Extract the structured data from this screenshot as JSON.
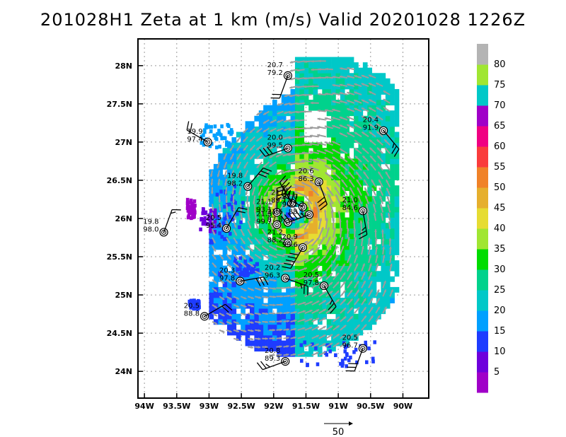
{
  "chart_data": {
    "type": "heatmap",
    "title": "201028H1 Zeta at 1 km (m/s) Valid 20201028 1226Z",
    "x_ticks": [
      "94W",
      "93.5W",
      "93W",
      "92.5W",
      "92W",
      "91.5W",
      "91W",
      "90.5W",
      "90W"
    ],
    "x_tick_values": [
      -94,
      -93.5,
      -93,
      -92.5,
      -92,
      -91.5,
      -91,
      -90.5,
      -90
    ],
    "y_ticks": [
      "24N",
      "24.5N",
      "25N",
      "25.5N",
      "26N",
      "26.5N",
      "27N",
      "27.5N",
      "28N"
    ],
    "y_tick_values": [
      24,
      24.5,
      25,
      25.5,
      26,
      26.5,
      27,
      27.5,
      28
    ],
    "xlim": [
      -94.1,
      -89.6
    ],
    "ylim": [
      23.65,
      28.35
    ],
    "grid": true,
    "center": {
      "lon": -91.7,
      "lat": 26.05
    },
    "colorbar": {
      "levels": [
        "5",
        "10",
        "15",
        "20",
        "25",
        "30",
        "35",
        "40",
        "45",
        "50",
        "55",
        "60",
        "65",
        "70",
        "75",
        "80"
      ],
      "colors": [
        "#a000c8",
        "#6e00dc",
        "#1e3cff",
        "#00a0ff",
        "#00c8c8",
        "#00d28c",
        "#00dc00",
        "#a0e632",
        "#e6dc32",
        "#e6af2d",
        "#f08228",
        "#fa3c3c",
        "#f00082",
        "#a000c8",
        "#00c8c8",
        "#a0e632",
        "#b4b4b4"
      ]
    },
    "vector_reference": {
      "label": "50",
      "speed": 50
    },
    "dropsondes": [
      {
        "lon": -91.78,
        "lat": 27.87,
        "label_top": "20.7",
        "label_bottom": "79.2",
        "wind_dir": 200,
        "wind_speed": 20
      },
      {
        "lon": -90.3,
        "lat": 27.15,
        "label_top": "20.4",
        "label_bottom": "91.9",
        "wind_dir": 140,
        "wind_speed": 25
      },
      {
        "lon": -93.02,
        "lat": 27.0,
        "label_top": "19.9",
        "label_bottom": "97.4",
        "wind_dir": 300,
        "wind_speed": 20
      },
      {
        "lon": -91.78,
        "lat": 26.92,
        "label_top": "20.0",
        "label_bottom": "99.5",
        "wind_dir": 250,
        "wind_speed": 30
      },
      {
        "lon": -91.3,
        "lat": 26.48,
        "label_top": "20.6",
        "label_bottom": "86.3",
        "wind_dir": 160,
        "wind_speed": 30
      },
      {
        "lon": -92.4,
        "lat": 26.42,
        "label_top": "19.8",
        "label_bottom": "98.2",
        "wind_dir": 40,
        "wind_speed": 30
      },
      {
        "lon": -90.62,
        "lat": 26.1,
        "label_top": "21.0",
        "label_bottom": "84.6",
        "wind_dir": 170,
        "wind_speed": 25
      },
      {
        "lon": -93.7,
        "lat": 25.82,
        "label_top": "19.8",
        "label_bottom": "98.0",
        "wind_dir": 20,
        "wind_speed": 15
      },
      {
        "lon": -92.73,
        "lat": 25.87,
        "label_top": "20.5",
        "label_bottom": "95.4",
        "wind_dir": 30,
        "wind_speed": 20
      },
      {
        "lon": -91.95,
        "lat": 26.08,
        "label_top": "21.1",
        "label_bottom": "93.1",
        "wind_dir": 0,
        "wind_speed": 35
      },
      {
        "lon": -91.95,
        "lat": 25.92,
        "label_top": "21.3",
        "label_bottom": "99.7",
        "wind_dir": 0,
        "wind_speed": 0
      },
      {
        "lon": -91.78,
        "lat": 25.95,
        "label_top": "21.6",
        "label_bottom": "87.8",
        "wind_dir": 0,
        "wind_speed": 0
      },
      {
        "lon": -91.78,
        "lat": 25.68,
        "label_top": "21.2",
        "label_bottom": "88.2",
        "wind_dir": 0,
        "wind_speed": 0
      },
      {
        "lon": -91.72,
        "lat": 26.2,
        "label_top": "21.2",
        "label_bottom": "89.1",
        "wind_dir": 330,
        "wind_speed": 45
      },
      {
        "lon": -91.55,
        "lat": 26.15,
        "label_top": "21.0",
        "label_bottom": "90.2",
        "wind_dir": 300,
        "wind_speed": 50
      },
      {
        "lon": -91.45,
        "lat": 26.05,
        "label_top": "21.3",
        "label_bottom": "88.1",
        "wind_dir": 250,
        "wind_speed": 55
      },
      {
        "lon": -91.55,
        "lat": 25.62,
        "label_top": "20.9",
        "label_bottom": "99.6",
        "wind_dir": 210,
        "wind_speed": 50
      },
      {
        "lon": -92.52,
        "lat": 25.18,
        "label_top": "20.3",
        "label_bottom": "97.8",
        "wind_dir": 80,
        "wind_speed": 30
      },
      {
        "lon": -91.82,
        "lat": 25.22,
        "label_top": "20.2",
        "label_bottom": "96.3",
        "wind_dir": 110,
        "wind_speed": 25
      },
      {
        "lon": -91.22,
        "lat": 25.12,
        "label_top": "20.5",
        "label_bottom": "97.8",
        "wind_dir": 150,
        "wind_speed": 25
      },
      {
        "lon": -93.07,
        "lat": 24.72,
        "label_top": "20.5",
        "label_bottom": "88.8",
        "wind_dir": 60,
        "wind_speed": 20
      },
      {
        "lon": -90.62,
        "lat": 24.3,
        "label_top": "20.5",
        "label_bottom": "96.7",
        "wind_dir": 200,
        "wind_speed": 30
      },
      {
        "lon": -91.82,
        "lat": 24.13,
        "label_top": "20.8",
        "label_bottom": "89.3",
        "wind_dir": 250,
        "wind_speed": 25
      }
    ]
  }
}
